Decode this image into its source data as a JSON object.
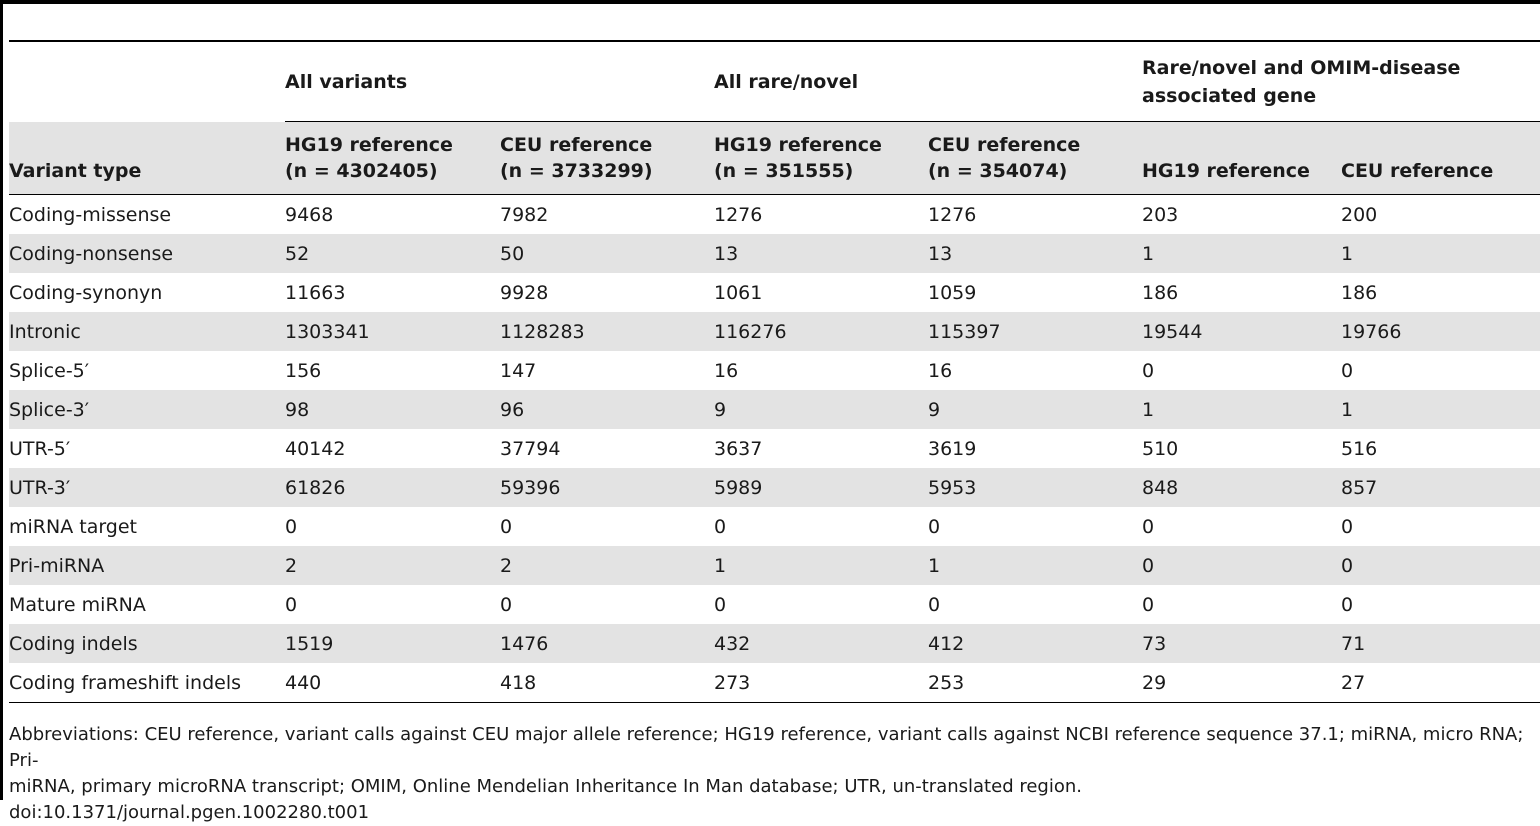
{
  "table": {
    "group_headers": {
      "all_variants": "All variants",
      "all_rare_novel": "All rare/novel",
      "rare_novel_omim": "Rare/novel and OMIM-disease associated gene"
    },
    "column_headers": {
      "variant_type": "Variant type",
      "all_hg19_line1": "HG19 reference",
      "all_hg19_line2": "(n = 4302405)",
      "all_ceu_line1": "CEU reference",
      "all_ceu_line2": "(n = 3733299)",
      "rare_hg19_line1": "HG19 reference",
      "rare_hg19_line2": "(n = 351555)",
      "rare_ceu_line1": "CEU reference",
      "rare_ceu_line2": "(n = 354074)",
      "omim_hg19": "HG19 reference",
      "omim_ceu": "CEU reference"
    },
    "rows": [
      {
        "type": "Coding-missense",
        "c1": "9468",
        "c2": "7982",
        "c3": "1276",
        "c4": "1276",
        "c5": "203",
        "c6": "200"
      },
      {
        "type": "Coding-nonsense",
        "c1": "52",
        "c2": "50",
        "c3": "13",
        "c4": "13",
        "c5": "1",
        "c6": "1"
      },
      {
        "type": "Coding-synonyn",
        "c1": "11663",
        "c2": "9928",
        "c3": "1061",
        "c4": "1059",
        "c5": "186",
        "c6": "186"
      },
      {
        "type": "Intronic",
        "c1": "1303341",
        "c2": "1128283",
        "c3": "116276",
        "c4": "115397",
        "c5": "19544",
        "c6": "19766"
      },
      {
        "type": "Splice-5′",
        "c1": "156",
        "c2": "147",
        "c3": "16",
        "c4": "16",
        "c5": "0",
        "c6": "0"
      },
      {
        "type": "Splice-3′",
        "c1": "98",
        "c2": "96",
        "c3": "9",
        "c4": "9",
        "c5": "1",
        "c6": "1"
      },
      {
        "type": "UTR-5′",
        "c1": "40142",
        "c2": "37794",
        "c3": "3637",
        "c4": "3619",
        "c5": "510",
        "c6": "516"
      },
      {
        "type": "UTR-3′",
        "c1": "61826",
        "c2": "59396",
        "c3": "5989",
        "c4": "5953",
        "c5": "848",
        "c6": "857"
      },
      {
        "type": "miRNA target",
        "c1": "0",
        "c2": "0",
        "c3": "0",
        "c4": "0",
        "c5": "0",
        "c6": "0"
      },
      {
        "type": "Pri-miRNA",
        "c1": "2",
        "c2": "2",
        "c3": "1",
        "c4": "1",
        "c5": "0",
        "c6": "0"
      },
      {
        "type": "Mature miRNA",
        "c1": "0",
        "c2": "0",
        "c3": "0",
        "c4": "0",
        "c5": "0",
        "c6": "0"
      },
      {
        "type": "Coding indels",
        "c1": "1519",
        "c2": "1476",
        "c3": "432",
        "c4": "412",
        "c5": "73",
        "c6": "71"
      },
      {
        "type": "Coding frameshift indels",
        "c1": "440",
        "c2": "418",
        "c3": "273",
        "c4": "253",
        "c5": "29",
        "c6": "27"
      }
    ]
  },
  "footnote": {
    "line1": "Abbreviations: CEU reference, variant calls against CEU major allele reference; HG19 reference, variant calls against NCBI reference sequence 37.1; miRNA, micro RNA; Pri-",
    "line2": "miRNA, primary microRNA transcript; OMIM, Online Mendelian Inheritance In Man database; UTR, un-translated region.",
    "doi": "doi:10.1371/journal.pgen.1002280.t001"
  }
}
